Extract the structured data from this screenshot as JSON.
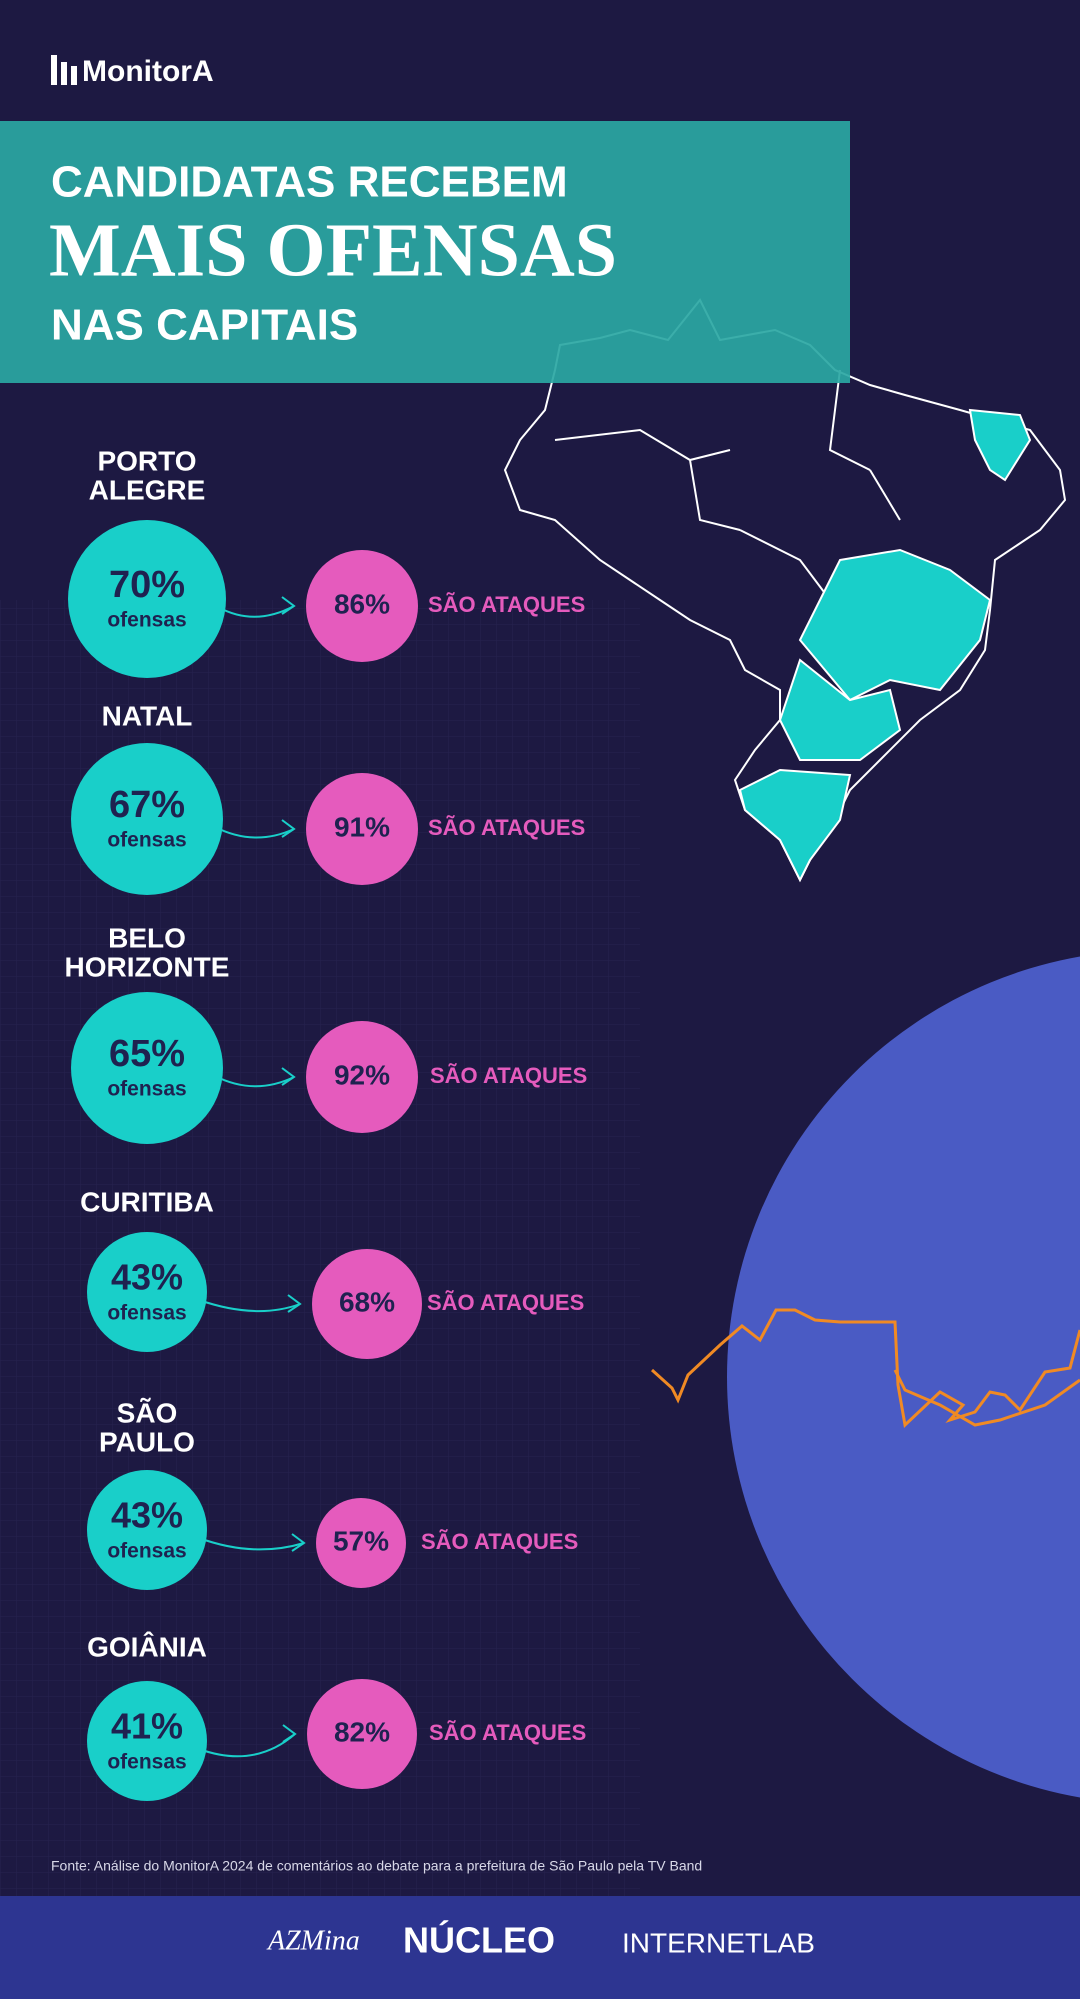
{
  "brand": "MonitorA",
  "header": {
    "line1": "CANDIDATAS RECEBEM",
    "line2": "MAIS OFENSAS",
    "line3": "NAS CAPITAIS"
  },
  "cities": [
    {
      "name": [
        "PORTO",
        "ALEGRE"
      ],
      "offenses": "70%",
      "offenses_label": "ofensas",
      "attacks": "86%",
      "attacks_label": "SÃO ATAQUES"
    },
    {
      "name": [
        "NATAL"
      ],
      "offenses": "67%",
      "offenses_label": "ofensas",
      "attacks": "91%",
      "attacks_label": "SÃO ATAQUES"
    },
    {
      "name": [
        "BELO",
        "HORIZONTE"
      ],
      "offenses": "65%",
      "offenses_label": "ofensas",
      "attacks": "92%",
      "attacks_label": "SÃO ATAQUES"
    },
    {
      "name": [
        "CURITIBA"
      ],
      "offenses": "43%",
      "offenses_label": "ofensas",
      "attacks": "68%",
      "attacks_label": "SÃO ATAQUES"
    },
    {
      "name": [
        "SÃO",
        "PAULO"
      ],
      "offenses": "43%",
      "offenses_label": "ofensas",
      "attacks": "57%",
      "attacks_label": "SÃO ATAQUES"
    },
    {
      "name": [
        "GOIÂNIA"
      ],
      "offenses": "41%",
      "offenses_label": "ofensas",
      "attacks": "82%",
      "attacks_label": "SÃO ATAQUES"
    }
  ],
  "source": "Fonte: Análise do MonitorA 2024 de comentários ao debate para a prefeitura de São Paulo pela TV Band",
  "footer": {
    "logos": [
      "AZMina",
      "NÚCLEO",
      "INTERNETLAB"
    ]
  }
}
